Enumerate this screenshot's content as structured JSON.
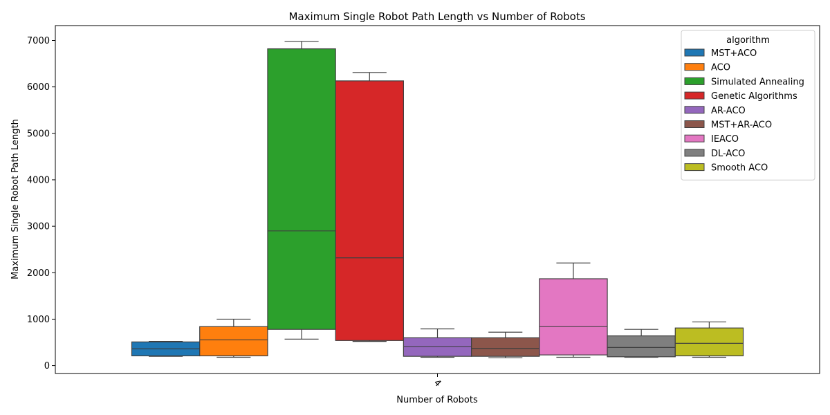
{
  "chart_data": {
    "type": "box",
    "title": "Maximum Single Robot Path Length vs Number of Robots",
    "xlabel": "Number of Robots",
    "ylabel": "Maximum Single Robot Path Length",
    "categories": [
      "4"
    ],
    "ylim": [
      -170,
      7320
    ],
    "yticks": [
      0,
      1000,
      2000,
      3000,
      4000,
      5000,
      6000,
      7000
    ],
    "grid": false,
    "legend": {
      "title": "algorithm",
      "placement": "top-right"
    },
    "series": [
      {
        "name": "MST+ACO",
        "color": "#1f77b4",
        "whisker_low": 200,
        "q1": 210,
        "median": 360,
        "q3": 510,
        "whisker_high": 520
      },
      {
        "name": "ACO",
        "color": "#ff7f0e",
        "whisker_low": 180,
        "q1": 210,
        "median": 555,
        "q3": 840,
        "whisker_high": 1000
      },
      {
        "name": "Simulated Annealing",
        "color": "#2ca02c",
        "whisker_low": 570,
        "q1": 780,
        "median": 2900,
        "q3": 6820,
        "whisker_high": 6980
      },
      {
        "name": "Genetic Algorithms",
        "color": "#d62728",
        "whisker_low": 520,
        "q1": 540,
        "median": 2320,
        "q3": 6130,
        "whisker_high": 6310
      },
      {
        "name": "AR-ACO",
        "color": "#9467bd",
        "whisker_low": 180,
        "q1": 200,
        "median": 410,
        "q3": 600,
        "whisker_high": 790
      },
      {
        "name": "MST+AR-ACO",
        "color": "#8c564b",
        "whisker_low": 170,
        "q1": 200,
        "median": 370,
        "q3": 600,
        "whisker_high": 720
      },
      {
        "name": "IEACO",
        "color": "#e377c2",
        "whisker_low": 180,
        "q1": 230,
        "median": 840,
        "q3": 1870,
        "whisker_high": 2210
      },
      {
        "name": "DL-ACO",
        "color": "#7f7f7f",
        "whisker_low": 180,
        "q1": 190,
        "median": 390,
        "q3": 640,
        "whisker_high": 780
      },
      {
        "name": "Smooth ACO",
        "color": "#bcbd22",
        "whisker_low": 180,
        "q1": 210,
        "median": 480,
        "q3": 810,
        "whisker_high": 940
      }
    ]
  }
}
